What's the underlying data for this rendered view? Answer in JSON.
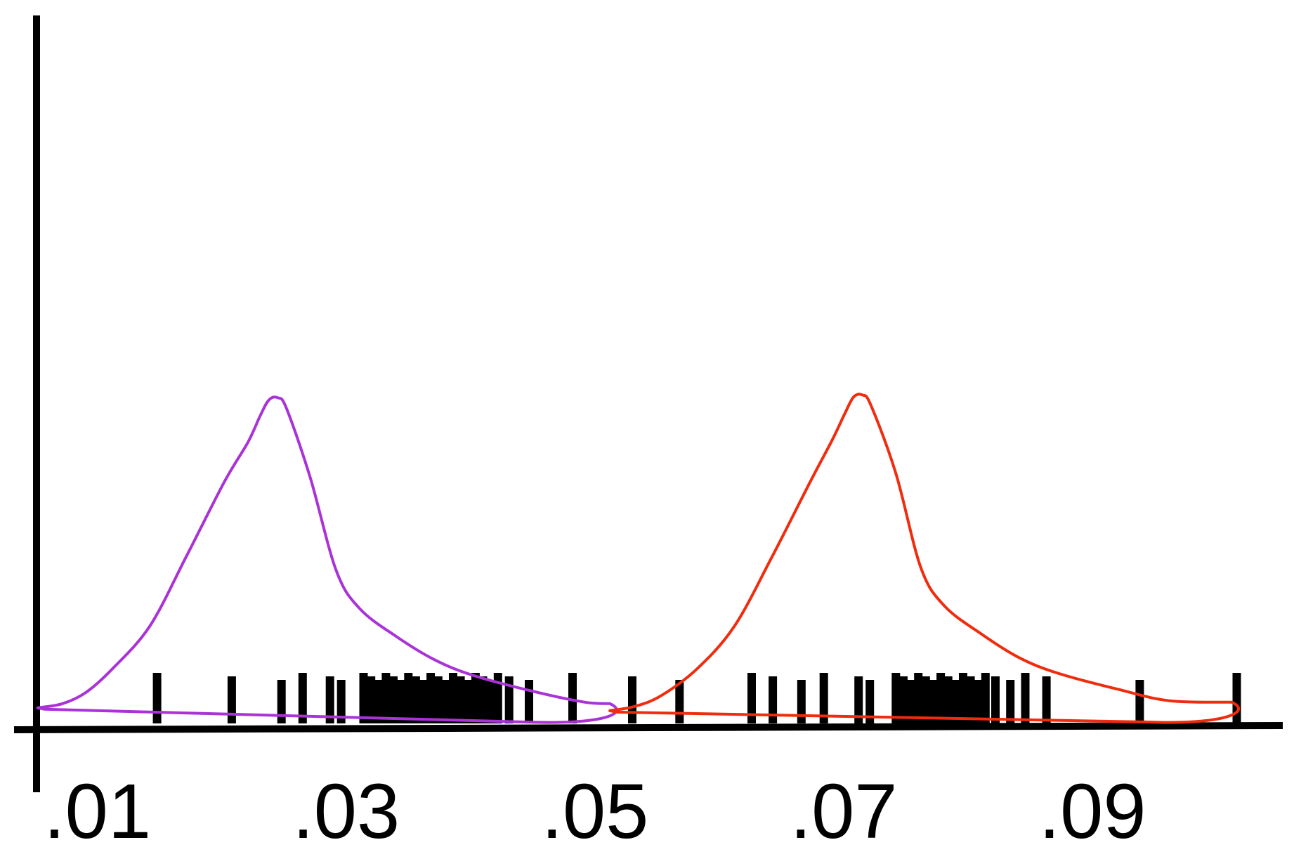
{
  "chart_data": {
    "type": "line",
    "title": "",
    "xlabel": "",
    "ylabel": "",
    "xlim": [
      0.0033,
      0.1053
    ],
    "ylim": [
      0,
      1
    ],
    "grid": false,
    "x_ticks": [
      {
        "value": 0.01,
        "label": ".01"
      },
      {
        "value": 0.03,
        "label": ".03"
      },
      {
        "value": 0.05,
        "label": ".05"
      },
      {
        "value": 0.07,
        "label": ".07"
      },
      {
        "value": 0.09,
        "label": ".09"
      }
    ],
    "series": [
      {
        "color": "#a933d6",
        "points": [
          [
            0.0052,
            0.022
          ],
          [
            0.0072,
            0.028
          ],
          [
            0.0091,
            0.044
          ],
          [
            0.0112,
            0.077
          ],
          [
            0.0142,
            0.137
          ],
          [
            0.0171,
            0.234
          ],
          [
            0.0202,
            0.341
          ],
          [
            0.0221,
            0.397
          ],
          [
            0.0231,
            0.435
          ],
          [
            0.0238,
            0.457
          ],
          [
            0.0245,
            0.46
          ],
          [
            0.0252,
            0.445
          ],
          [
            0.0271,
            0.348
          ],
          [
            0.0292,
            0.216
          ],
          [
            0.0311,
            0.162
          ],
          [
            0.0341,
            0.122
          ],
          [
            0.0371,
            0.09
          ],
          [
            0.0402,
            0.068
          ],
          [
            0.0451,
            0.045
          ],
          [
            0.0492,
            0.03
          ],
          [
            0.0512,
            0.028
          ]
        ]
      },
      {
        "color": "#f02c0e",
        "points": [
          [
            0.0512,
            0.018
          ],
          [
            0.0532,
            0.024
          ],
          [
            0.0553,
            0.039
          ],
          [
            0.0582,
            0.077
          ],
          [
            0.0612,
            0.137
          ],
          [
            0.0642,
            0.234
          ],
          [
            0.0673,
            0.341
          ],
          [
            0.0691,
            0.401
          ],
          [
            0.0701,
            0.438
          ],
          [
            0.0708,
            0.461
          ],
          [
            0.0715,
            0.464
          ],
          [
            0.0722,
            0.449
          ],
          [
            0.0742,
            0.353
          ],
          [
            0.0762,
            0.22
          ],
          [
            0.0781,
            0.166
          ],
          [
            0.0811,
            0.126
          ],
          [
            0.0841,
            0.093
          ],
          [
            0.0872,
            0.071
          ],
          [
            0.0921,
            0.048
          ],
          [
            0.0962,
            0.032
          ],
          [
            0.1012,
            0.03
          ]
        ]
      }
    ],
    "rug_x": [
      0.0148,
      0.0208,
      0.0248,
      0.0265,
      0.0287,
      0.0296,
      0.0314,
      0.032,
      0.0326,
      0.0332,
      0.0338,
      0.0344,
      0.035,
      0.0356,
      0.0362,
      0.0368,
      0.0374,
      0.038,
      0.0386,
      0.0392,
      0.0398,
      0.0404,
      0.041,
      0.0416,
      0.0422,
      0.0431,
      0.0447,
      0.0482,
      0.053,
      0.0568,
      0.0626,
      0.0643,
      0.0666,
      0.0684,
      0.0712,
      0.0721,
      0.0742,
      0.0748,
      0.0754,
      0.076,
      0.0766,
      0.0772,
      0.0778,
      0.0784,
      0.079,
      0.0796,
      0.0802,
      0.0808,
      0.0814,
      0.0822,
      0.0834,
      0.0846,
      0.0863,
      0.0938,
      0.1016
    ]
  }
}
